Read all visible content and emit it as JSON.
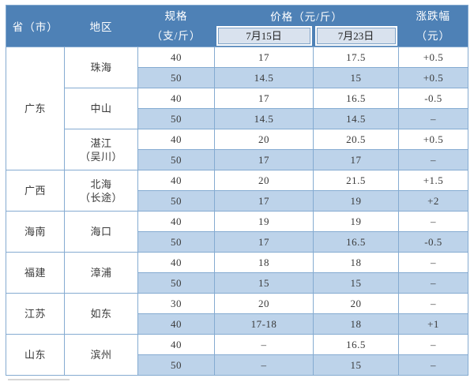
{
  "colors": {
    "header_bg": "#4e81b6",
    "header_text": "#ffffff",
    "subheader_bg": "#d9e2ee",
    "subheader_border": "#7fa3c8",
    "stripe_bg": "#bdd3ea",
    "grid_line": "#85abd1",
    "cell_text": "#3a3a3a",
    "page_bg": "#ffffff"
  },
  "table": {
    "header": {
      "province": "省（市）",
      "region": "地区",
      "spec_line1": "规格",
      "spec_line2": "（支/斤）",
      "price_group": "价格（元/斤）",
      "date_col1": "7月15日",
      "date_col2": "7月23日",
      "change_line1": "涨跌幅",
      "change_line2": "（元）"
    },
    "groups": [
      {
        "province": "广东",
        "regions": [
          {
            "name_lines": [
              "珠海"
            ],
            "rows": [
              [
                "40",
                "17",
                "17.5",
                "+0.5"
              ],
              [
                "50",
                "14.5",
                "15",
                "+0.5"
              ]
            ]
          },
          {
            "name_lines": [
              "中山"
            ],
            "rows": [
              [
                "40",
                "17",
                "16.5",
                "-0.5"
              ],
              [
                "50",
                "14.5",
                "14.5",
                "–"
              ]
            ]
          },
          {
            "name_lines": [
              "湛江",
              "（吴川）"
            ],
            "rows": [
              [
                "40",
                "20",
                "20.5",
                "+0.5"
              ],
              [
                "50",
                "17",
                "17",
                "–"
              ]
            ]
          }
        ]
      },
      {
        "province": "广西",
        "regions": [
          {
            "name_lines": [
              "北海",
              "（长途）"
            ],
            "rows": [
              [
                "40",
                "20",
                "21.5",
                "+1.5"
              ],
              [
                "50",
                "17",
                "19",
                "+2"
              ]
            ]
          }
        ]
      },
      {
        "province": "海南",
        "regions": [
          {
            "name_lines": [
              "海口"
            ],
            "rows": [
              [
                "40",
                "19",
                "19",
                "–"
              ],
              [
                "50",
                "17",
                "16.5",
                "-0.5"
              ]
            ]
          }
        ]
      },
      {
        "province": "福建",
        "regions": [
          {
            "name_lines": [
              "漳浦"
            ],
            "rows": [
              [
                "40",
                "18",
                "18",
                "–"
              ],
              [
                "50",
                "15",
                "15",
                "–"
              ]
            ]
          }
        ]
      },
      {
        "province": "江苏",
        "regions": [
          {
            "name_lines": [
              "如东"
            ],
            "rows": [
              [
                "30",
                "20",
                "20",
                "–"
              ],
              [
                "40",
                "17-18",
                "18",
                "+1"
              ]
            ]
          }
        ]
      },
      {
        "province": "山东",
        "regions": [
          {
            "name_lines": [
              "滨州"
            ],
            "rows": [
              [
                "40",
                "–",
                "16.5",
                "–"
              ],
              [
                "50",
                "–",
                "15",
                "–"
              ]
            ]
          }
        ]
      }
    ]
  }
}
